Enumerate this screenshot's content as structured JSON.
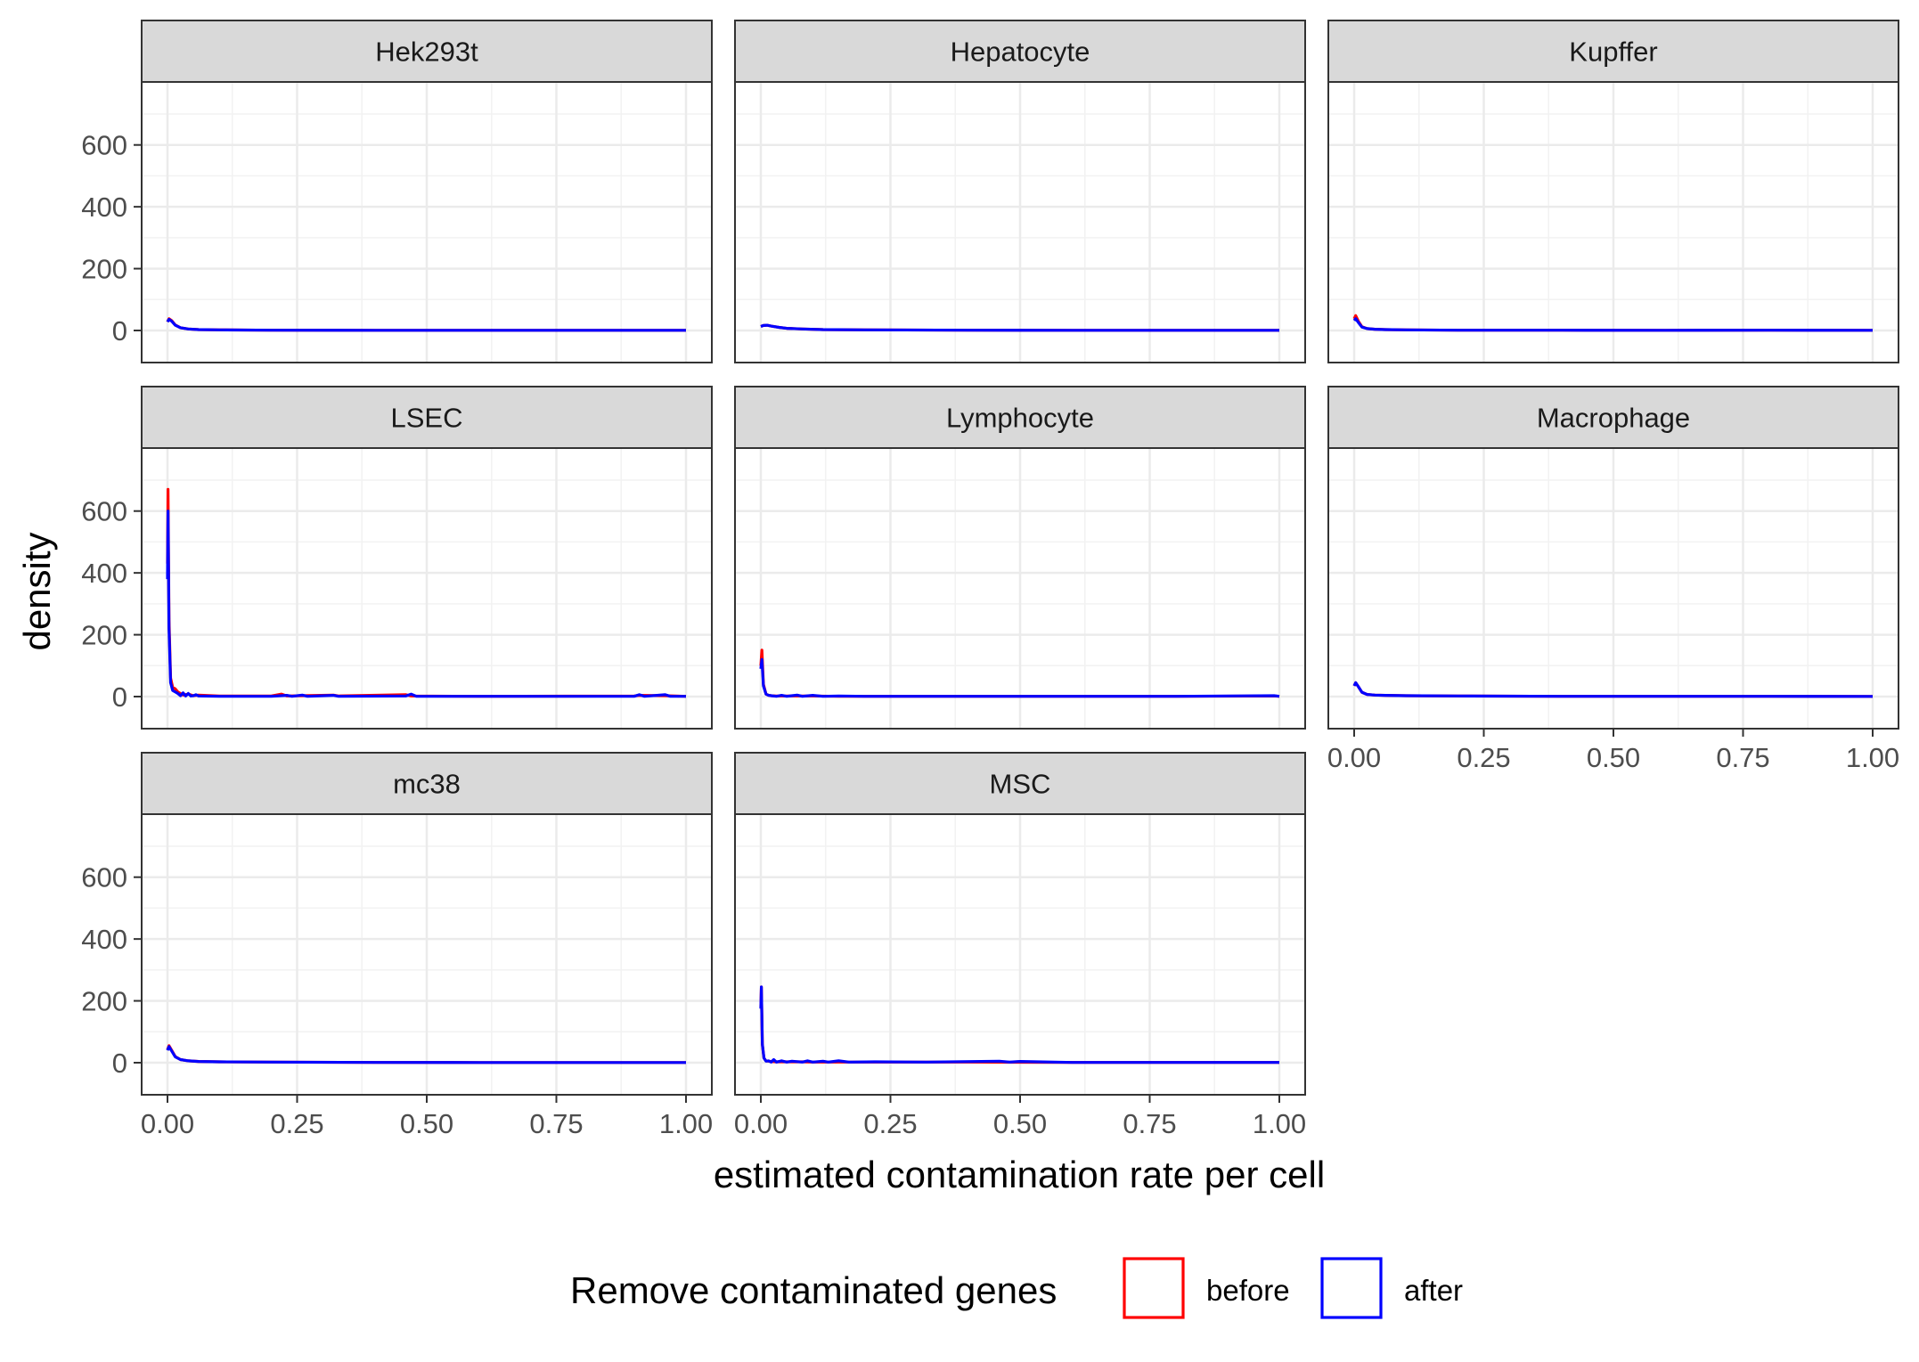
{
  "chart_data": {
    "type": "line",
    "subtype": "faceted density",
    "xlabel": "estimated contamination rate per cell",
    "ylabel": "density",
    "xlim": [
      0,
      1
    ],
    "ylim": [
      0,
      700
    ],
    "x_ticks": [
      0,
      0.25,
      0.5,
      0.75,
      1
    ],
    "x_tick_labels": [
      "0.00",
      "0.25",
      "0.50",
      "0.75",
      "1.00"
    ],
    "y_ticks": [
      0,
      200,
      400,
      600
    ],
    "y_tick_labels": [
      "0",
      "200",
      "400",
      "600"
    ],
    "grid": true,
    "legend": {
      "title": "Remove contaminated genes",
      "placement": "bottom",
      "entries": [
        {
          "label": "before",
          "color": "#ff0000"
        },
        {
          "label": "after",
          "color": "#0000ff"
        }
      ]
    },
    "facet_layout": {
      "ncol": 3,
      "nrow": 3
    },
    "facets": [
      {
        "label": "Hek293t",
        "series": [
          {
            "name": "before",
            "color": "#ff0000",
            "x": [
              0,
              0.003,
              0.008,
              0.015,
              0.025,
              0.04,
              0.06,
              0.1,
              0.2,
              0.4,
              0.6,
              0.8,
              1.0
            ],
            "y": [
              28,
              38,
              32,
              18,
              9,
              5,
              3,
              2,
              1,
              0.5,
              0.5,
              0.5,
              0.5
            ]
          },
          {
            "name": "after",
            "color": "#0000ff",
            "x": [
              0,
              0.003,
              0.008,
              0.015,
              0.025,
              0.04,
              0.06,
              0.1,
              0.2,
              0.4,
              0.6,
              0.8,
              1.0
            ],
            "y": [
              28,
              36,
              30,
              17,
              9,
              5,
              3,
              2,
              1,
              0.5,
              0.5,
              0.5,
              0.5
            ]
          }
        ]
      },
      {
        "label": "Hepatocyte",
        "series": [
          {
            "name": "before",
            "color": "#ff0000",
            "x": [
              0,
              0.005,
              0.012,
              0.02,
              0.035,
              0.05,
              0.08,
              0.12,
              0.2,
              0.4,
              0.6,
              0.8,
              1.0
            ],
            "y": [
              13,
              16,
              17,
              14,
              10,
              7,
              5,
              3,
              2,
              1,
              0.5,
              0.5,
              0.5
            ]
          },
          {
            "name": "after",
            "color": "#0000ff",
            "x": [
              0,
              0.005,
              0.012,
              0.02,
              0.035,
              0.05,
              0.08,
              0.12,
              0.2,
              0.4,
              0.6,
              0.8,
              1.0
            ],
            "y": [
              13,
              16,
              17,
              14,
              10,
              7,
              5,
              3,
              2,
              1,
              0.5,
              0.5,
              0.5
            ]
          }
        ]
      },
      {
        "label": "Kupffer",
        "series": [
          {
            "name": "before",
            "color": "#ff0000",
            "x": [
              0,
              0.003,
              0.008,
              0.015,
              0.025,
              0.04,
              0.06,
              0.1,
              0.2,
              0.4,
              0.6,
              0.8,
              1.0
            ],
            "y": [
              38,
              48,
              30,
              12,
              6,
              4,
              3,
              2,
              1,
              1,
              0.5,
              1,
              0.5
            ]
          },
          {
            "name": "after",
            "color": "#0000ff",
            "x": [
              0,
              0.003,
              0.008,
              0.015,
              0.025,
              0.04,
              0.06,
              0.1,
              0.2,
              0.4,
              0.6,
              0.8,
              1.0
            ],
            "y": [
              32,
              38,
              26,
              11,
              6,
              4,
              3,
              2,
              1,
              1,
              0.5,
              1,
              0.5
            ]
          }
        ]
      },
      {
        "label": "LSEC",
        "series": [
          {
            "name": "before",
            "color": "#ff0000",
            "x": [
              0,
              0.001,
              0.003,
              0.006,
              0.01,
              0.015,
              0.02,
              0.03,
              0.04,
              0.05,
              0.06,
              0.1,
              0.2,
              0.22,
              0.23,
              0.26,
              0.32,
              0.33,
              0.46,
              0.47,
              0.6,
              0.9,
              0.91,
              0.96,
              1.0
            ],
            "y": [
              430,
              670,
              250,
              60,
              30,
              25,
              15,
              5,
              8,
              3,
              5,
              2,
              2,
              8,
              2,
              3,
              5,
              2,
              6,
              2,
              1,
              2,
              4,
              3,
              1
            ]
          },
          {
            "name": "after",
            "color": "#0000ff",
            "x": [
              0,
              0.001,
              0.003,
              0.006,
              0.01,
              0.015,
              0.02,
              0.025,
              0.03,
              0.035,
              0.04,
              0.045,
              0.05,
              0.055,
              0.06,
              0.1,
              0.2,
              0.23,
              0.24,
              0.26,
              0.27,
              0.32,
              0.33,
              0.46,
              0.47,
              0.48,
              0.6,
              0.9,
              0.91,
              0.92,
              0.96,
              0.97,
              1.0
            ],
            "y": [
              380,
              600,
              220,
              45,
              20,
              15,
              10,
              3,
              12,
              2,
              10,
              2,
              3,
              6,
              2,
              1,
              1,
              4,
              1,
              5,
              1,
              4,
              1,
              2,
              8,
              1,
              1,
              1,
              6,
              1,
              6,
              1,
              1
            ]
          }
        ]
      },
      {
        "label": "Lymphocyte",
        "series": [
          {
            "name": "before",
            "color": "#ff0000",
            "x": [
              0,
              0.002,
              0.005,
              0.01,
              0.015,
              0.02,
              0.03,
              0.05,
              0.08,
              0.1,
              0.15,
              0.2,
              0.4,
              0.6,
              0.8,
              0.99,
              1.0
            ],
            "y": [
              100,
              150,
              40,
              8,
              4,
              3,
              2,
              2,
              2,
              2,
              1,
              1,
              1,
              1,
              1,
              2,
              1
            ]
          },
          {
            "name": "after",
            "color": "#0000ff",
            "x": [
              0,
              0.002,
              0.005,
              0.01,
              0.015,
              0.02,
              0.03,
              0.04,
              0.05,
              0.07,
              0.08,
              0.1,
              0.12,
              0.15,
              0.2,
              0.4,
              0.6,
              0.8,
              0.99,
              1.0
            ],
            "y": [
              90,
              120,
              35,
              8,
              4,
              3,
              1,
              4,
              1,
              5,
              1,
              4,
              1,
              2,
              1,
              1,
              1,
              1,
              3,
              1
            ]
          }
        ]
      },
      {
        "label": "Macrophage",
        "series": [
          {
            "name": "before",
            "color": "#ff0000",
            "x": [
              0,
              0.003,
              0.008,
              0.015,
              0.025,
              0.04,
              0.06,
              0.1,
              0.2,
              0.4,
              0.6,
              0.8,
              1.0
            ],
            "y": [
              35,
              45,
              32,
              14,
              7,
              5,
              4,
              3,
              2,
              1,
              1,
              1,
              0.5
            ]
          },
          {
            "name": "after",
            "color": "#0000ff",
            "x": [
              0,
              0.003,
              0.008,
              0.015,
              0.025,
              0.04,
              0.06,
              0.1,
              0.2,
              0.4,
              0.6,
              0.8,
              1.0
            ],
            "y": [
              35,
              45,
              32,
              14,
              7,
              5,
              4,
              3,
              2,
              1,
              1,
              1,
              0.5
            ]
          }
        ]
      },
      {
        "label": "mc38",
        "series": [
          {
            "name": "before",
            "color": "#ff0000",
            "x": [
              0,
              0.003,
              0.008,
              0.015,
              0.025,
              0.04,
              0.06,
              0.1,
              0.2,
              0.4,
              0.6,
              0.8,
              1.0
            ],
            "y": [
              42,
              55,
              40,
              20,
              10,
              6,
              4,
              3,
              2,
              1,
              0.5,
              0.5,
              0.5
            ]
          },
          {
            "name": "after",
            "color": "#0000ff",
            "x": [
              0,
              0.003,
              0.008,
              0.015,
              0.025,
              0.04,
              0.06,
              0.1,
              0.2,
              0.4,
              0.6,
              0.8,
              1.0
            ],
            "y": [
              40,
              52,
              38,
              19,
              10,
              6,
              4,
              3,
              2,
              1,
              0.5,
              0.5,
              0.5
            ]
          }
        ]
      },
      {
        "label": "MSC",
        "series": [
          {
            "name": "before",
            "color": "#ff0000",
            "x": [
              0,
              0.001,
              0.003,
              0.006,
              0.01,
              0.015,
              0.02,
              0.03,
              0.05,
              0.08,
              0.1,
              0.15,
              0.2,
              0.4,
              0.6,
              0.8,
              1.0
            ],
            "y": [
              180,
              245,
              60,
              15,
              6,
              5,
              4,
              3,
              3,
              3,
              2,
              2,
              2,
              2,
              1,
              1,
              1
            ]
          },
          {
            "name": "after",
            "color": "#0000ff",
            "x": [
              0,
              0.001,
              0.003,
              0.006,
              0.01,
              0.015,
              0.02,
              0.025,
              0.03,
              0.04,
              0.05,
              0.06,
              0.08,
              0.09,
              0.1,
              0.12,
              0.13,
              0.15,
              0.17,
              0.22,
              0.32,
              0.46,
              0.48,
              0.5,
              0.6,
              0.8,
              1.0
            ],
            "y": [
              175,
              245,
              60,
              15,
              5,
              6,
              2,
              10,
              2,
              6,
              2,
              5,
              2,
              6,
              2,
              5,
              2,
              6,
              2,
              3,
              2,
              5,
              2,
              4,
              1,
              1,
              1
            ]
          }
        ]
      }
    ]
  }
}
